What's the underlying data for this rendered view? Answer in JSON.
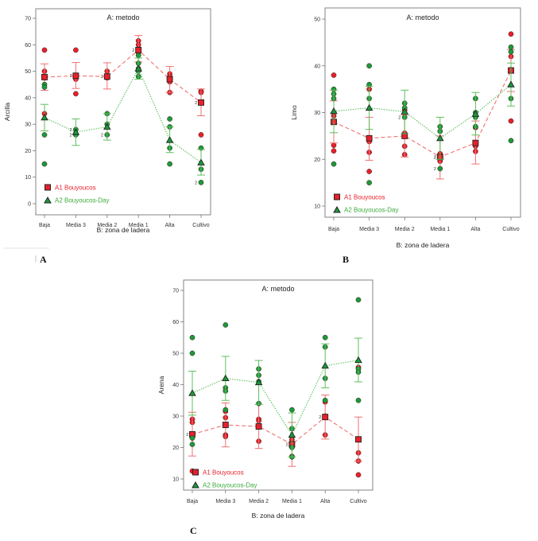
{
  "colors": {
    "a1": "#e8202a",
    "a1_line": "#f07070",
    "a2": "#1a9a3a",
    "a2_line": "#5cc05c",
    "frame": "#777777"
  },
  "chart_data": [
    {
      "panel": "A",
      "type": "scatter",
      "title": "A: metodo",
      "xlabel": "B: zona de ladera",
      "ylabel": "Arcilla",
      "categories": [
        "Baja",
        "Media 3",
        "Media 2",
        "Media 1",
        "Alta",
        "Cultivo"
      ],
      "ylim": [
        -4,
        72
      ],
      "yticks": [
        0,
        10,
        20,
        30,
        40,
        50,
        60,
        70
      ],
      "legend": {
        "position": "bottom-left",
        "entries": [
          "A1 Bouyoucos",
          "A2 Bouyoucos-Day"
        ]
      },
      "series": [
        {
          "name": "A1 Bouyoucos",
          "marker": "square",
          "line": "dashed",
          "means": [
            47.8,
            48.3,
            48.0,
            58.0,
            47.0,
            38.2
          ],
          "ci_low": [
            42.8,
            43.5,
            43.3,
            53.5,
            42.0,
            33.2
          ],
          "ci_high": [
            52.8,
            53.3,
            53.2,
            63.5,
            51.8,
            43.3
          ],
          "points": [
            [
              58,
              50,
              48,
              47.5,
              34
            ],
            [
              58,
              48.5,
              47,
              41.5
            ],
            [
              50,
              48,
              47.5
            ],
            [
              61.5,
              60,
              58.5,
              57
            ],
            [
              49,
              48,
              47,
              46,
              42
            ],
            [
              42.5,
              42,
              38,
              26
            ]
          ],
          "dup_labels": [
            [],
            [
              "2"
            ],
            [
              "2"
            ],
            [
              "2"
            ],
            [],
            [
              "2"
            ]
          ]
        },
        {
          "name": "A2 Bouyoucos-Day",
          "marker": "triangle",
          "line": "dotted",
          "means": [
            32.5,
            27.0,
            29.0,
            51.0,
            24.0,
            15.5
          ],
          "ci_low": [
            27.5,
            22.0,
            24.0,
            47.0,
            19.3,
            10.8
          ],
          "ci_high": [
            37.5,
            32.0,
            34.0,
            55.0,
            29.0,
            20.5
          ],
          "points": [
            [
              45,
              44,
              26,
              15
            ],
            [
              28,
              26
            ],
            [
              34,
              30,
              26
            ],
            [
              56,
              53,
              51,
              50,
              48
            ],
            [
              32,
              29,
              21,
              15
            ],
            [
              21,
              13,
              8
            ]
          ],
          "dup_labels": [
            [],
            [
              "2",
              "2"
            ],
            [
              "2"
            ],
            [],
            [],
            [
              "2"
            ]
          ]
        }
      ]
    },
    {
      "panel": "B",
      "type": "scatter",
      "title": "A: metodo",
      "xlabel": "B: zona de ladera",
      "ylabel": "Limo",
      "categories": [
        "Baja",
        "Media 3",
        "Media 2",
        "Media 1",
        "Alta",
        "Cultivo"
      ],
      "ylim": [
        8,
        52
      ],
      "yticks": [
        10,
        20,
        30,
        40,
        50
      ],
      "legend": {
        "position": "bottom-left",
        "entries": [
          "A1 Bouyoucos",
          "A2 Bouyoucos-Day"
        ]
      },
      "series": [
        {
          "name": "A1 Bouyoucos",
          "marker": "square",
          "line": "dashed",
          "means": [
            28.0,
            24.5,
            25.0,
            20.5,
            23.5,
            39.0
          ],
          "ci_low": [
            23.5,
            19.8,
            20.5,
            15.8,
            19.0,
            34.5
          ],
          "ci_high": [
            32.5,
            29.0,
            29.5,
            25.0,
            28.2,
            43.5
          ],
          "points": [
            [
              38,
              29.3,
              28,
              23,
              21.8
            ],
            [
              35,
              24.2,
              23.8,
              21.5,
              17.4
            ],
            [
              30.5,
              25.6,
              25,
              22.8,
              21
            ],
            [
              21.2,
              20.6,
              20,
              19.6
            ],
            [
              26.8,
              23.5,
              22.8,
              21.7
            ],
            [
              46.8,
              42,
              39.2,
              28.2
            ]
          ],
          "dup_labels": [
            [],
            [],
            [],
            [
              "2",
              "2"
            ],
            [],
            []
          ]
        },
        {
          "name": "A2 Bouyoucos-Day",
          "marker": "triangle",
          "line": "dotted",
          "means": [
            30.3,
            31.0,
            30.2,
            24.5,
            29.7,
            36.0
          ],
          "ci_low": [
            25.7,
            26.4,
            25.5,
            20.0,
            25.2,
            31.4
          ],
          "ci_high": [
            34.8,
            35.6,
            34.8,
            29.0,
            34.3,
            40.6
          ],
          "points": [
            [
              35,
              34,
              33,
              19
            ],
            [
              40,
              36,
              33,
              15
            ],
            [
              32,
              31,
              29
            ],
            [
              27,
              26,
              18
            ],
            [
              33,
              30,
              29,
              27
            ],
            [
              44,
              43,
              33,
              24
            ]
          ],
          "dup_labels": [
            [],
            [],
            [
              "2"
            ],
            [
              "2"
            ],
            [],
            []
          ]
        }
      ]
    },
    {
      "panel": "C",
      "type": "scatter",
      "title": "A: metodo",
      "xlabel": "B: zona de ladera",
      "ylabel": "Arena",
      "categories": [
        "Baja",
        "Media 3",
        "Media 2",
        "Media 1",
        "Alta",
        "Cultivo"
      ],
      "ylim": [
        7,
        72
      ],
      "yticks": [
        10,
        20,
        30,
        40,
        50,
        60,
        70
      ],
      "legend": {
        "position": "bottom-left",
        "entries": [
          "A1 Bouyoucos",
          "A2 Bouyoucos-Day"
        ]
      },
      "series": [
        {
          "name": "A1 Bouyoucos",
          "marker": "square",
          "line": "dashed",
          "means": [
            24.2,
            27.2,
            26.7,
            21.0,
            29.7,
            22.6
          ],
          "ci_low": [
            17.3,
            20.2,
            19.7,
            14.0,
            22.7,
            15.6
          ],
          "ci_high": [
            31.2,
            34.2,
            33.7,
            28.0,
            36.7,
            29.7
          ],
          "points": [
            [
              29,
              28,
              24,
              12.5
            ],
            [
              31.5,
              29.5,
              24,
              23.5
            ],
            [
              29,
              28.5,
              22
            ],
            [
              23.5,
              22.5,
              17.2
            ],
            [
              34.5,
              30,
              24
            ],
            [
              45.5,
              18.3,
              15.7,
              11.3
            ]
          ],
          "dup_labels": [
            [
              "2"
            ],
            [],
            [],
            [
              "2"
            ],
            [
              "2"
            ],
            []
          ]
        },
        {
          "name": "A2 Bouyoucos-Day",
          "marker": "triangle",
          "line": "dotted",
          "means": [
            37.3,
            42.0,
            40.7,
            24.0,
            46.0,
            47.8
          ],
          "ci_low": [
            30.3,
            35.0,
            33.7,
            17.0,
            39.0,
            40.9
          ],
          "ci_high": [
            44.3,
            49.0,
            47.7,
            31.0,
            53.0,
            54.8
          ],
          "points": [
            [
              55,
              50,
              23,
              21
            ],
            [
              59,
              39,
              38,
              32
            ],
            [
              45,
              43,
              41,
              34
            ],
            [
              32,
              26,
              20,
              17
            ],
            [
              55,
              52,
              42,
              35
            ],
            [
              67,
              45,
              44,
              35
            ]
          ],
          "dup_labels": [
            [],
            [],
            [],
            [],
            [],
            []
          ]
        }
      ]
    }
  ],
  "panel_labels": [
    "A",
    "B",
    "C"
  ]
}
